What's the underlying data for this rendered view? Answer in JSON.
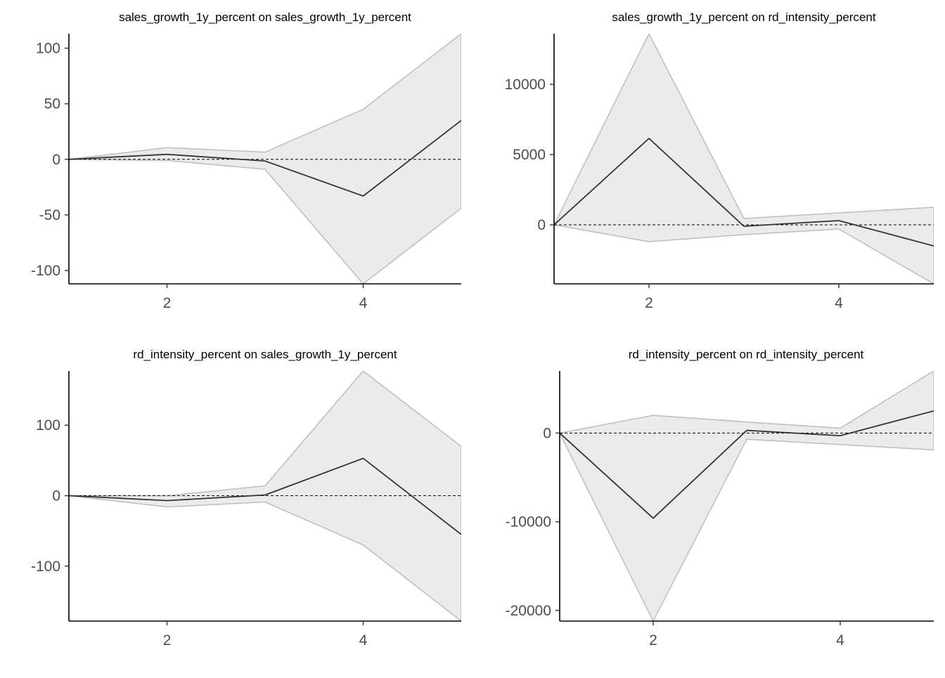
{
  "colors": {
    "band_fill": "#ebebeb",
    "band_edge": "#bdbdbd",
    "line": "#333333",
    "zero_line": "#000000",
    "tick_text": "#4d4d4d"
  },
  "chart_data": [
    {
      "type": "area",
      "title": "sales_growth_1y_percent on sales_growth_1y_percent",
      "xlabel": "",
      "ylabel": "",
      "x": [
        1,
        2,
        3,
        4,
        5
      ],
      "xlim": [
        1,
        5
      ],
      "ylim": [
        -112,
        113
      ],
      "xticks": [
        2,
        4
      ],
      "yticks": [
        100,
        50,
        0,
        -50,
        -100
      ],
      "irf": [
        0,
        4.5,
        -1.5,
        -33,
        35
      ],
      "lower": [
        0,
        -1,
        -9,
        -112,
        -44
      ],
      "upper": [
        0,
        10.5,
        6.5,
        45,
        113
      ],
      "zero_line": true,
      "grid": false
    },
    {
      "type": "area",
      "title": "sales_growth_1y_percent on rd_intensity_percent",
      "xlabel": "",
      "ylabel": "",
      "x": [
        1,
        2,
        3,
        4,
        5
      ],
      "xlim": [
        1,
        5
      ],
      "ylim": [
        -4200,
        13600
      ],
      "xticks": [
        2,
        4
      ],
      "yticks": [
        10000,
        5000,
        0
      ],
      "irf": [
        0,
        6150,
        -100,
        300,
        -1500
      ],
      "lower": [
        0,
        -1200,
        -700,
        -300,
        -4200
      ],
      "upper": [
        0,
        13600,
        450,
        850,
        1250
      ],
      "zero_line": true,
      "grid": false
    },
    {
      "type": "area",
      "title": "rd_intensity_percent on sales_growth_1y_percent",
      "xlabel": "",
      "ylabel": "",
      "x": [
        1,
        2,
        3,
        4,
        5
      ],
      "xlim": [
        1,
        5
      ],
      "ylim": [
        -178,
        177
      ],
      "xticks": [
        2,
        4
      ],
      "yticks": [
        100,
        0,
        -100
      ],
      "irf": [
        0,
        -7,
        1,
        53,
        -55
      ],
      "lower": [
        0,
        -16,
        -9,
        -70,
        -178
      ],
      "upper": [
        0,
        0,
        14,
        177,
        70
      ],
      "zero_line": true,
      "grid": false
    },
    {
      "type": "area",
      "title": "rd_intensity_percent on rd_intensity_percent",
      "xlabel": "",
      "ylabel": "",
      "x": [
        1,
        2,
        3,
        4,
        5
      ],
      "xlim": [
        1,
        5
      ],
      "ylim": [
        -21200,
        7000
      ],
      "xticks": [
        2,
        4
      ],
      "yticks": [
        0,
        -10000,
        -20000
      ],
      "irf": [
        0,
        -9600,
        300,
        -300,
        2500
      ],
      "lower": [
        0,
        -21200,
        -700,
        -1300,
        -1900
      ],
      "upper": [
        0,
        2000,
        1250,
        550,
        7000
      ],
      "zero_line": true,
      "grid": false
    }
  ]
}
